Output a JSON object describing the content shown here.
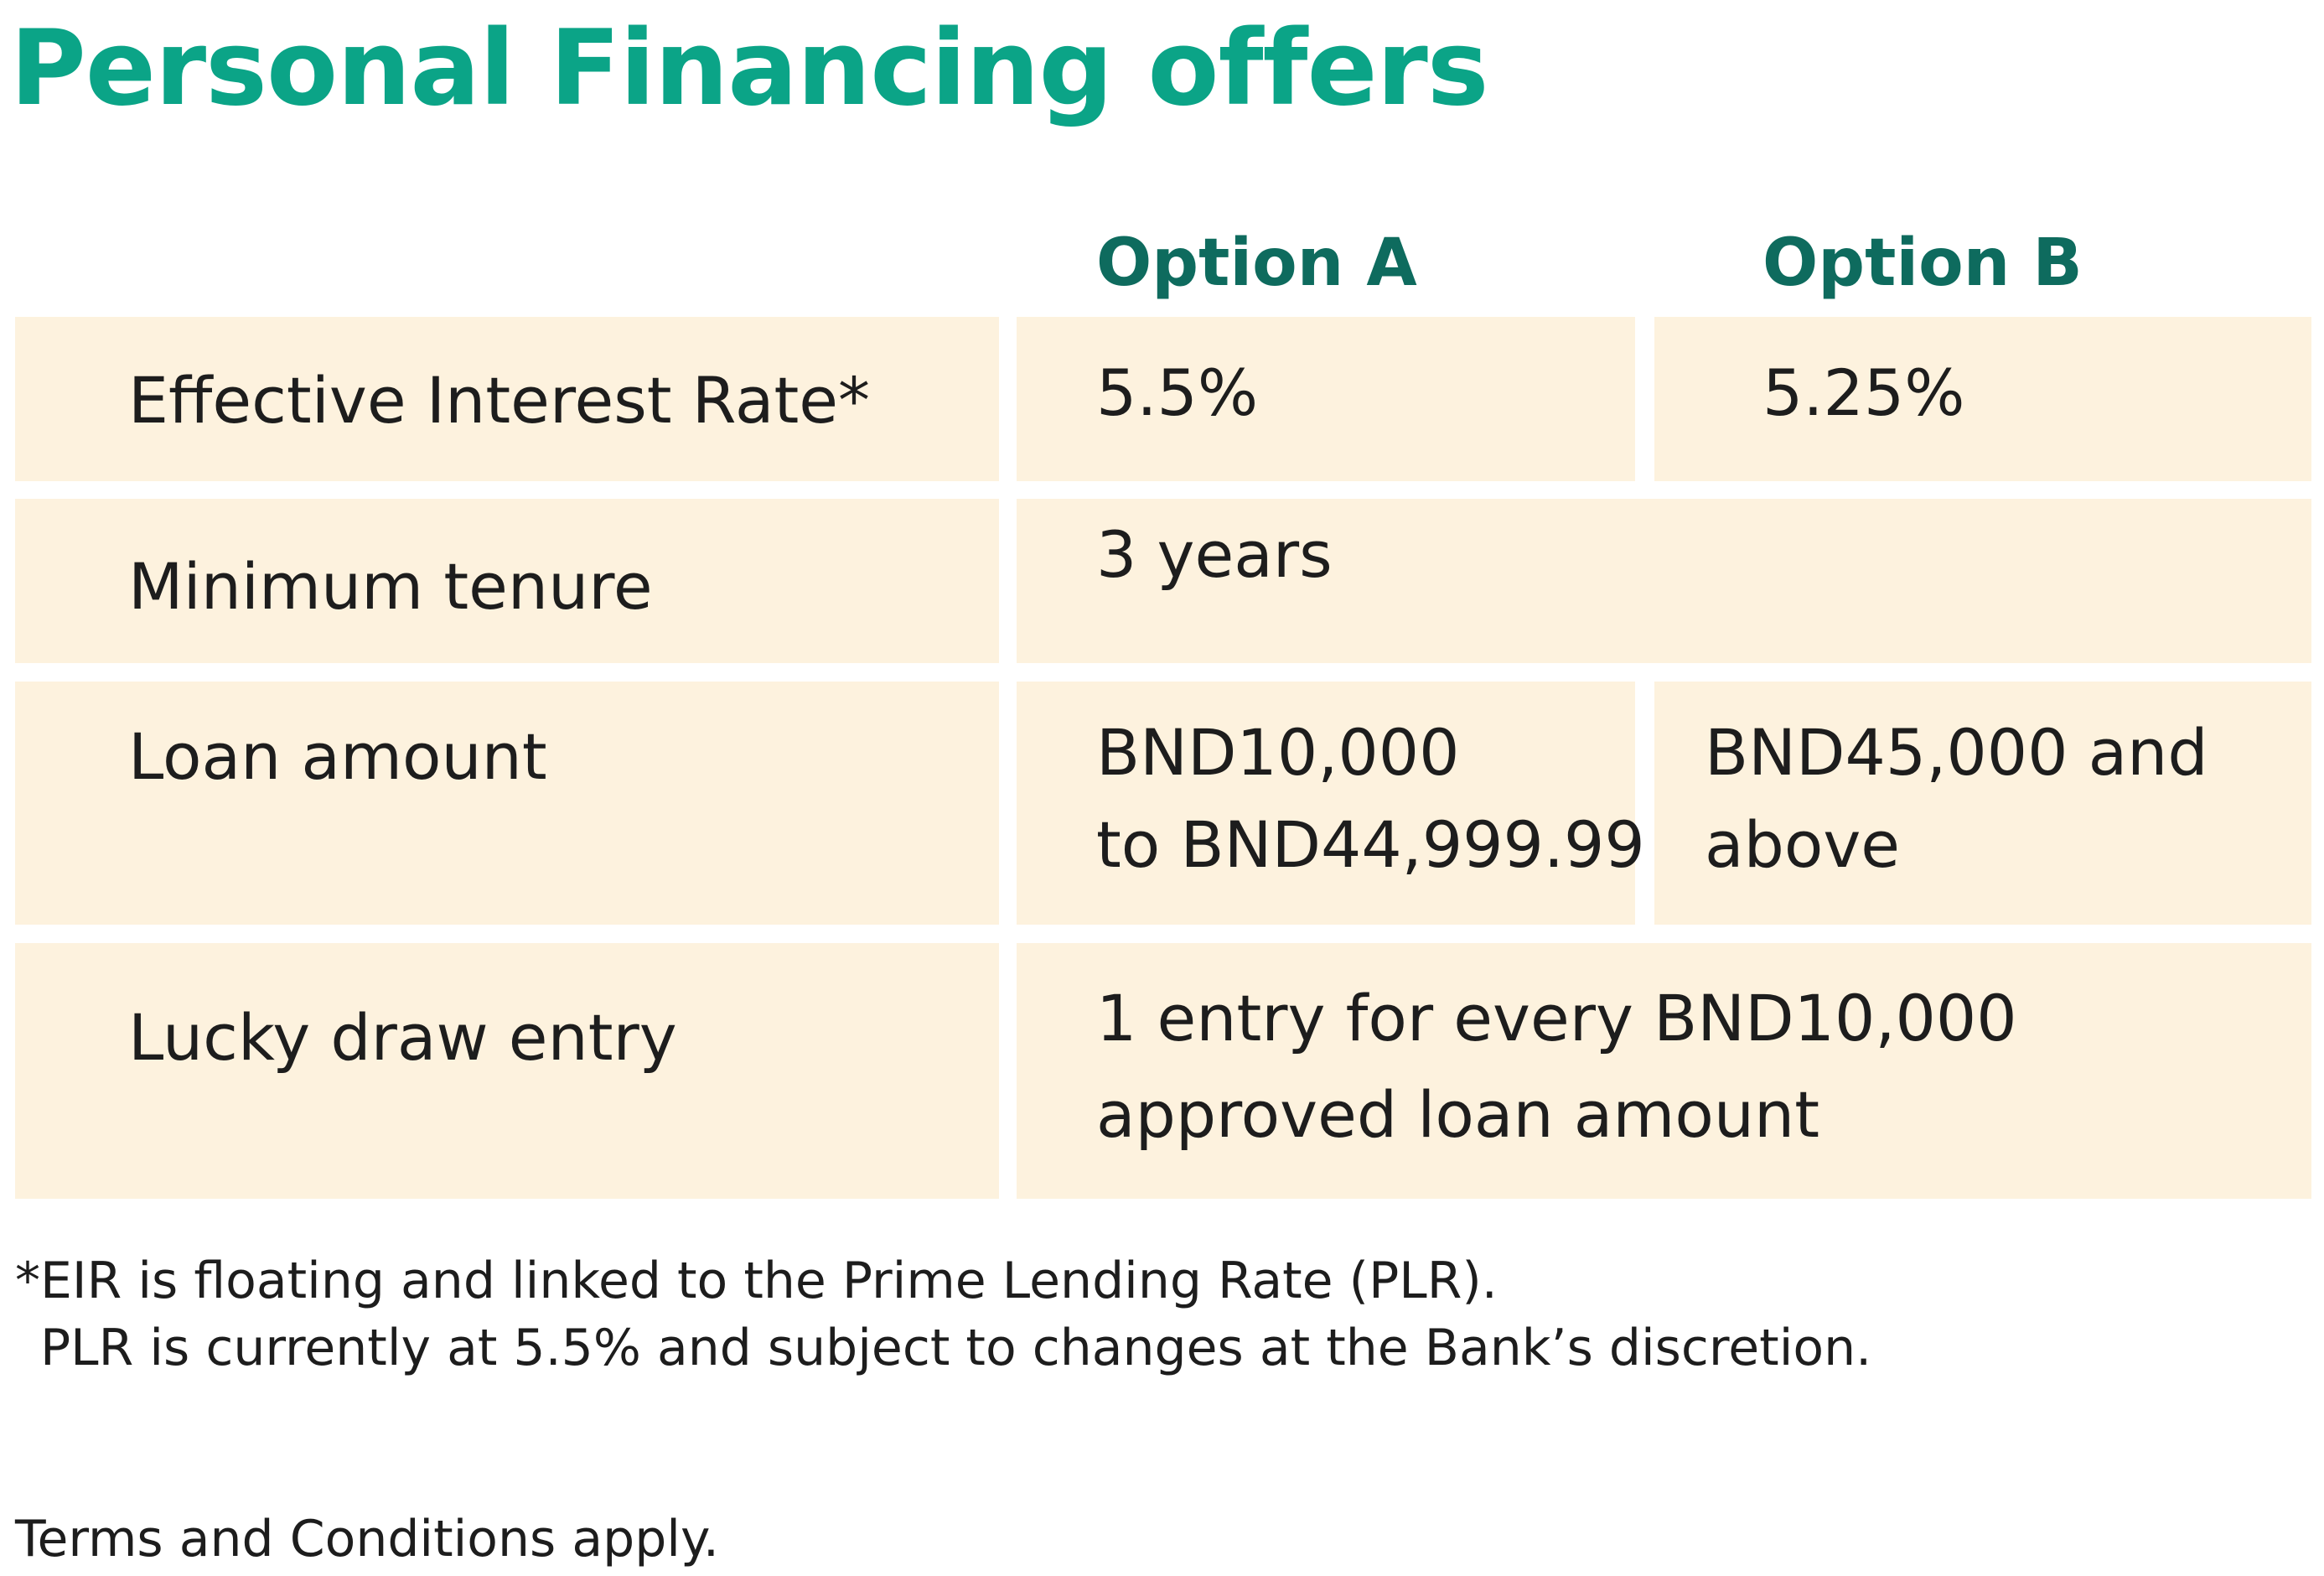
{
  "title": "Personal Financing offers",
  "colors": {
    "title": "#0ba487",
    "header": "#0e6b5e",
    "cell_bg": "#fdf2de",
    "text": "#1d1d1d"
  },
  "table": {
    "columns": [
      "Option A",
      "Option B"
    ],
    "rows": [
      {
        "label": "Effective Interest Rate*",
        "option_a": "5.5%",
        "option_b": "5.25%"
      },
      {
        "label": "Minimum tenure",
        "merged": "3 years"
      },
      {
        "label": "Loan amount",
        "option_a_line1": "BND10,000",
        "option_a_line2": "to BND44,999.99",
        "option_b_line1": "BND45,000 and",
        "option_b_line2": "above"
      },
      {
        "label": "Lucky draw entry",
        "merged_line1": "1 entry for every BND10,000",
        "merged_line2": "approved loan amount"
      }
    ]
  },
  "footnote": {
    "line1": "*EIR is floating and linked to the Prime Lending Rate (PLR).",
    "line2": "PLR is currently at 5.5% and subject to changes at the Bank’s discretion."
  },
  "terms": "Terms and Conditions apply."
}
